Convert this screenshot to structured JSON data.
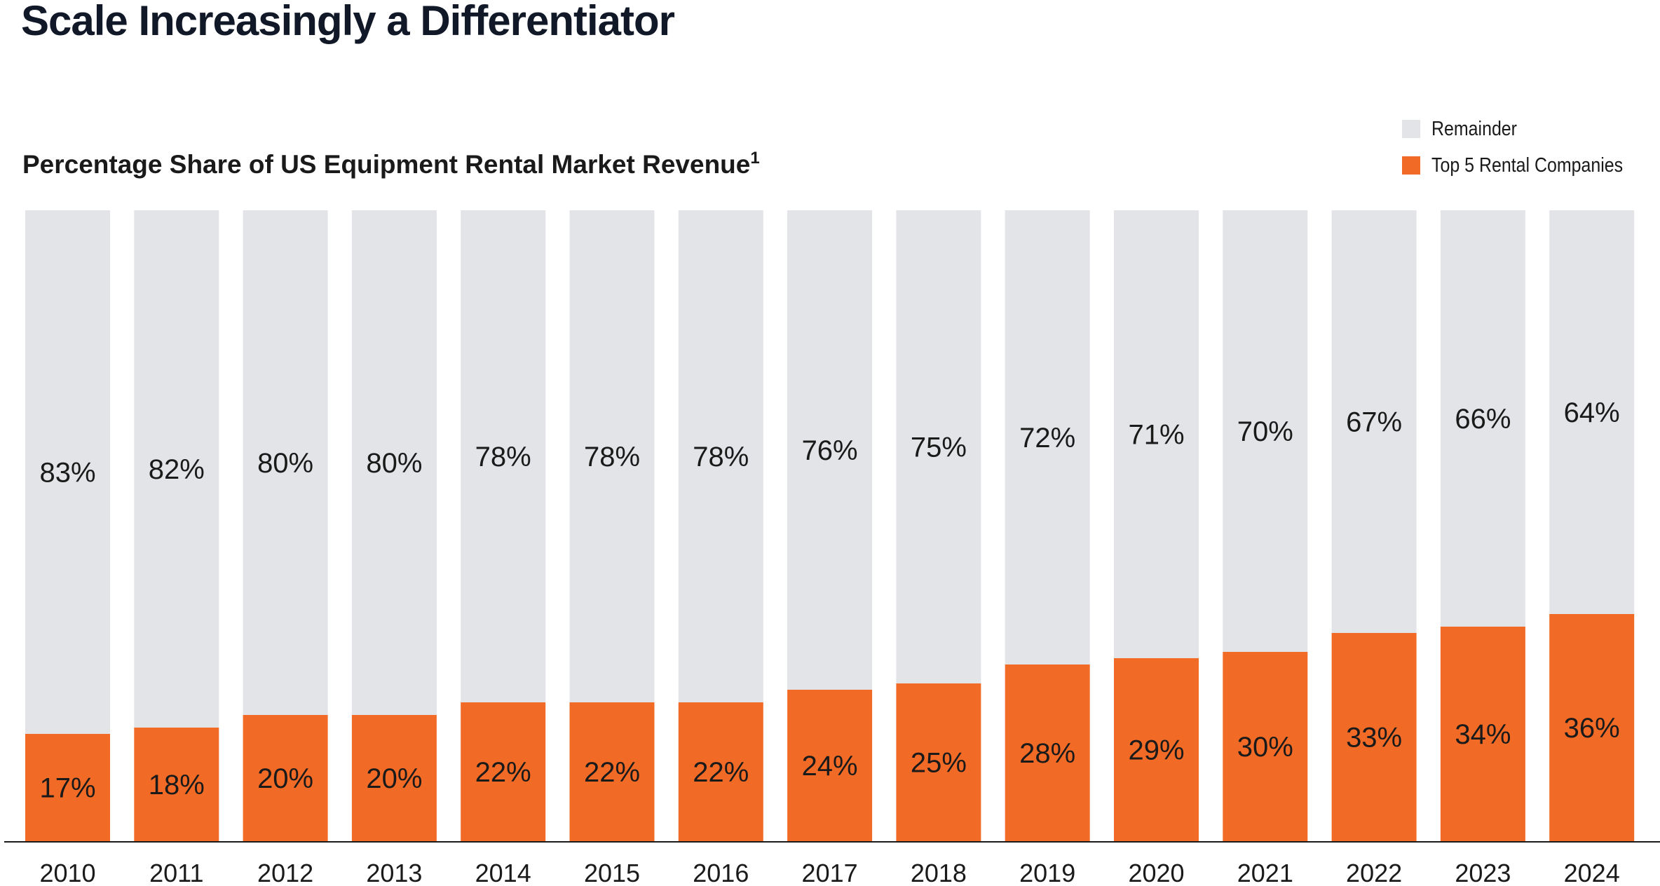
{
  "page": {
    "title": "Scale Increasingly a Differentiator"
  },
  "chart_data": {
    "type": "bar",
    "stacked": true,
    "percent": true,
    "title": "Percentage Share of US Equipment Rental Market Revenue",
    "title_footnote": "1",
    "xlabel": "",
    "ylabel": "",
    "ylim": [
      0,
      100
    ],
    "grid": false,
    "legend_position": "top-right",
    "categories": [
      "2010",
      "2011",
      "2012",
      "2013",
      "2014",
      "2015",
      "2016",
      "2017",
      "2018",
      "2019",
      "2020",
      "2021",
      "2022",
      "2023",
      "2024"
    ],
    "series": [
      {
        "name": "Top 5 Rental Companies",
        "color": "#f26b26",
        "values": [
          17,
          18,
          20,
          20,
          22,
          22,
          22,
          24,
          25,
          28,
          29,
          30,
          33,
          34,
          36
        ],
        "labels": [
          "17%",
          "18%",
          "20%",
          "20%",
          "22%",
          "22%",
          "22%",
          "24%",
          "25%",
          "28%",
          "29%",
          "30%",
          "33%",
          "34%",
          "36%"
        ]
      },
      {
        "name": "Remainder",
        "color": "#e3e4e8",
        "values": [
          83,
          82,
          80,
          80,
          78,
          78,
          78,
          76,
          75,
          72,
          71,
          70,
          67,
          66,
          64
        ],
        "labels": [
          "83%",
          "82%",
          "80%",
          "80%",
          "78%",
          "78%",
          "78%",
          "76%",
          "75%",
          "72%",
          "71%",
          "70%",
          "67%",
          "66%",
          "64%"
        ]
      }
    ],
    "legend": [
      {
        "name": "Remainder",
        "color": "#e3e4e8"
      },
      {
        "name": "Top 5 Rental Companies",
        "color": "#f26b26"
      }
    ]
  },
  "colors": {
    "axis": "#1a1a1a",
    "text": "#1a1a1a",
    "title": "#111827"
  }
}
